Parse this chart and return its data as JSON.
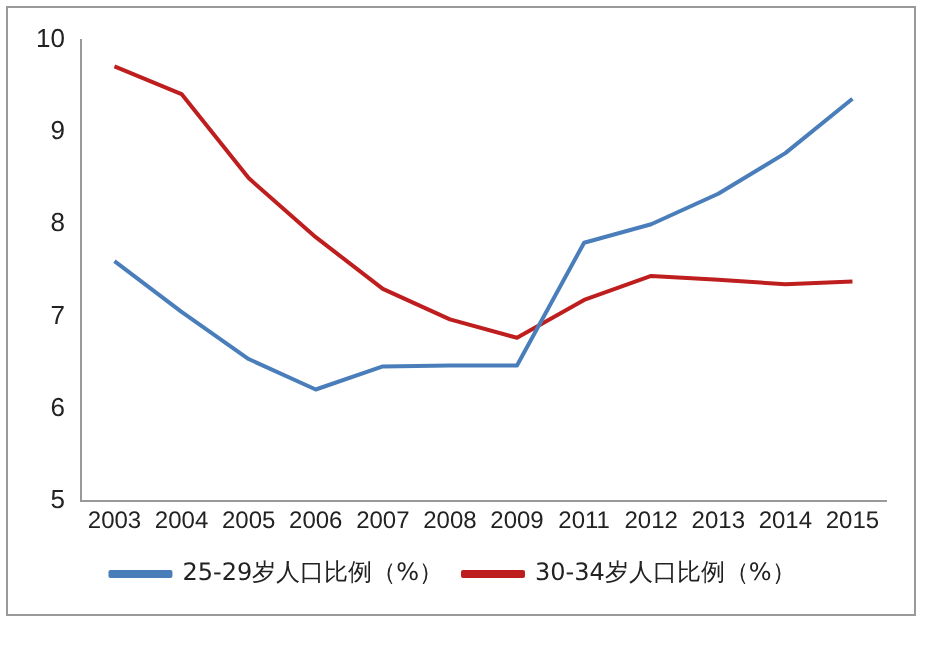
{
  "chart_data": {
    "type": "line",
    "categories": [
      "2003",
      "2004",
      "2005",
      "2006",
      "2007",
      "2008",
      "2009",
      "2011",
      "2012",
      "2013",
      "2014",
      "2015"
    ],
    "series": [
      {
        "name": "25-29岁人口比例（%）",
        "color": "#4a7ebb",
        "values": [
          7.6,
          7.05,
          6.54,
          6.21,
          6.46,
          6.47,
          6.47,
          7.8,
          8.0,
          8.33,
          8.77,
          9.36
        ]
      },
      {
        "name": "30-34岁人口比例（%）",
        "color": "#be1e1e",
        "values": [
          9.71,
          9.41,
          8.5,
          7.86,
          7.3,
          6.97,
          6.77,
          7.18,
          7.44,
          7.4,
          7.35,
          7.38
        ]
      }
    ],
    "ylim": [
      5,
      10
    ],
    "yticks": [
      5,
      6,
      7,
      8,
      9,
      10
    ],
    "grid": false,
    "legend": "bottom",
    "marker": "none",
    "line_style": "solid"
  }
}
